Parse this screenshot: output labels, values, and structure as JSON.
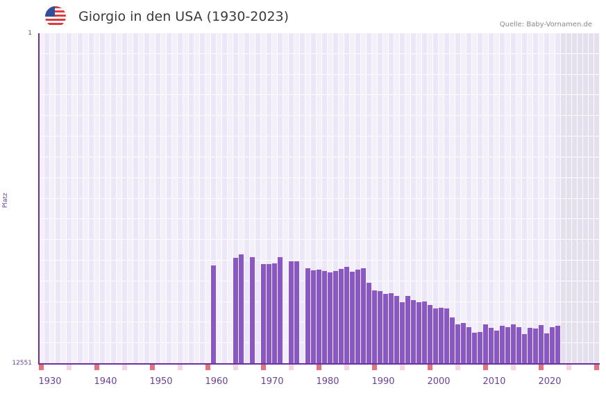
{
  "header": {
    "flag_icon": "us-flag-icon",
    "title": "Giorgio in den USA (1930-2023)",
    "source": "Quelle: Baby-Vornamen.de"
  },
  "colors": {
    "bar": "#8b57c8",
    "axis": "#6b2fa0",
    "marker_major": "#e87078",
    "marker_minor": "#f5d6de",
    "grid_a": "#f3f0fb",
    "grid_b": "#ece7f8",
    "future": "#e4dfee"
  },
  "chart_data": {
    "type": "bar",
    "title": "Giorgio in den USA (1930-2023)",
    "xlabel": "",
    "ylabel": "Platz",
    "ylim": [
      12551,
      1
    ],
    "y_ticks": [
      "1",
      "12551"
    ],
    "x_ticks": [
      "1930",
      "1940",
      "1950",
      "1960",
      "1970",
      "1980",
      "1990",
      "2000",
      "2010",
      "2020"
    ],
    "grid": true,
    "x": [
      1959,
      1963,
      1964,
      1966,
      1968,
      1969,
      1970,
      1971,
      1973,
      1974,
      1976,
      1977,
      1978,
      1979,
      1980,
      1981,
      1982,
      1983,
      1984,
      1985,
      1986,
      1987,
      1988,
      1989,
      1990,
      1991,
      1992,
      1993,
      1994,
      1995,
      1996,
      1997,
      1998,
      1999,
      2000,
      2001,
      2002,
      2003,
      2004,
      2005,
      2006,
      2007,
      2008,
      2009,
      2010,
      2011,
      2012,
      2013,
      2014,
      2015,
      2016,
      2017,
      2018,
      2019,
      2020,
      2021
    ],
    "values": [
      8815,
      8525,
      8393,
      8498,
      8761,
      8761,
      8735,
      8498,
      8656,
      8656,
      8919,
      8998,
      8972,
      9024,
      9077,
      9024,
      8946,
      8867,
      9051,
      8972,
      8919,
      9472,
      9761,
      9787,
      9893,
      9866,
      9971,
      10208,
      9971,
      10129,
      10208,
      10182,
      10313,
      10445,
      10419,
      10445,
      10787,
      11050,
      10998,
      11155,
      11366,
      11340,
      11050,
      11182,
      11287,
      11103,
      11155,
      11050,
      11155,
      11419,
      11182,
      11208,
      11077,
      11392,
      11155,
      11103
    ]
  }
}
